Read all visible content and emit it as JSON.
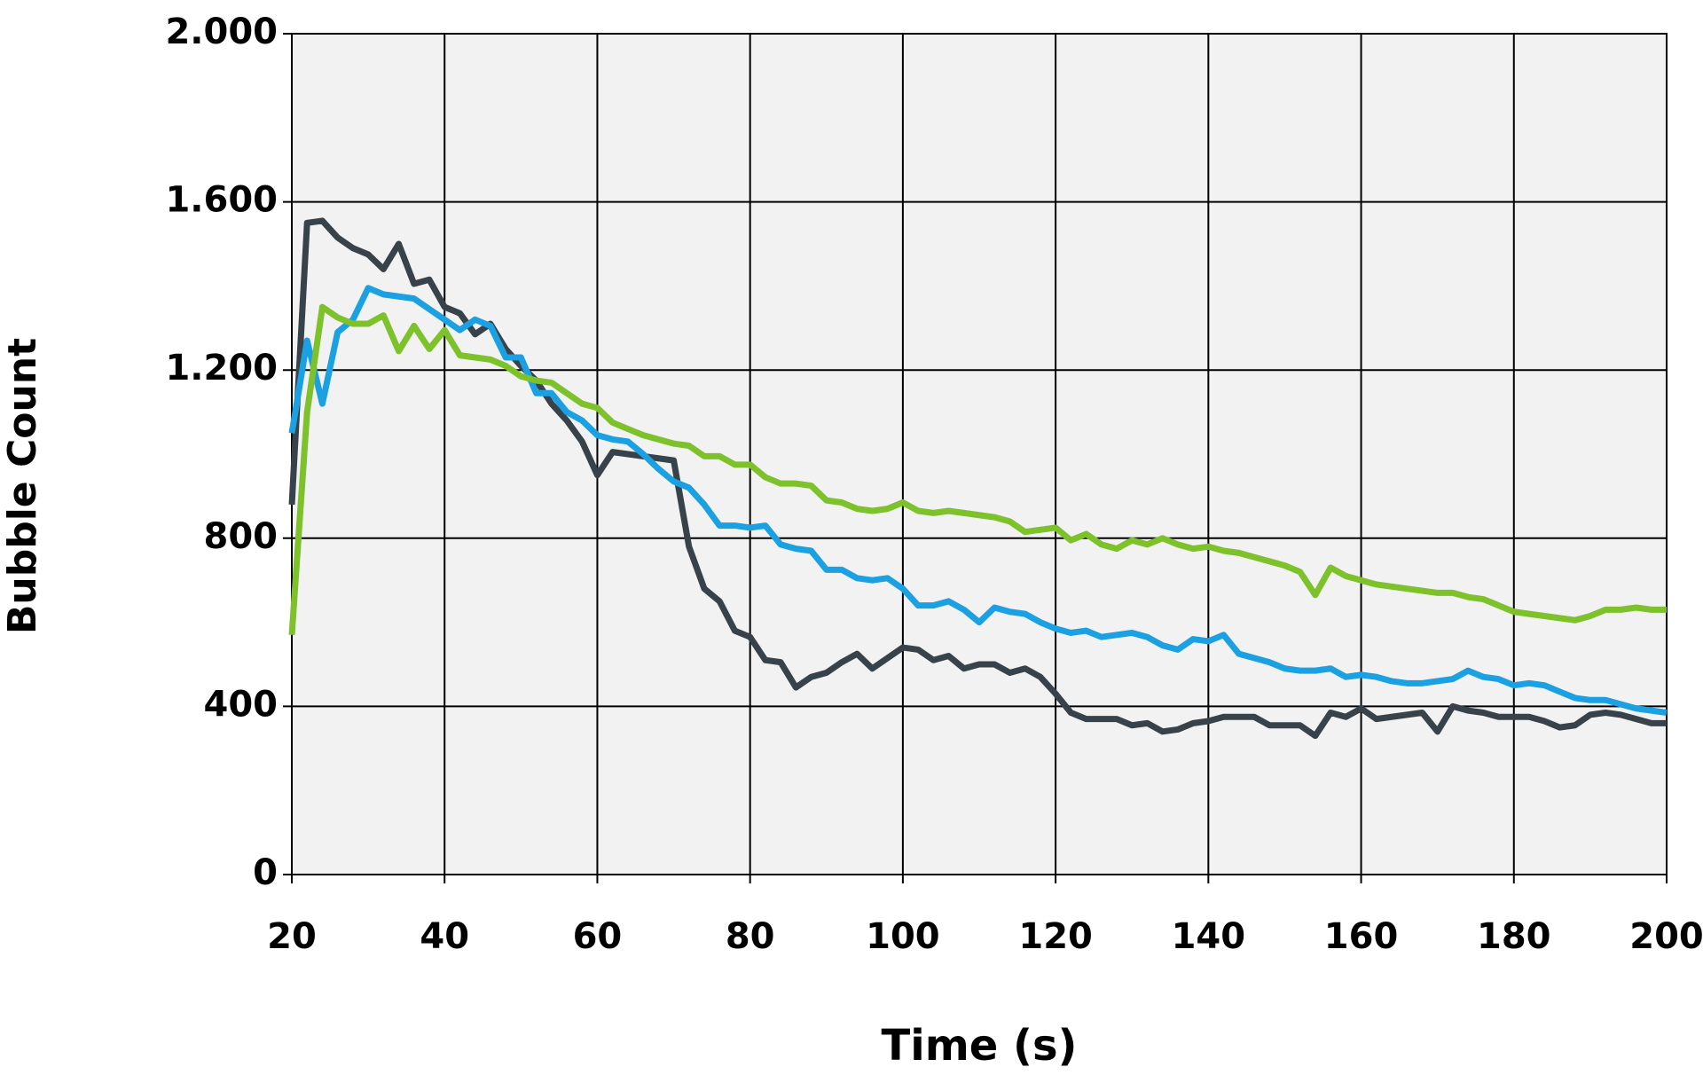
{
  "chart_data": {
    "type": "line",
    "x_label": "Time (s)",
    "y_label": "Bubble Count",
    "x": [
      20,
      22,
      24,
      26,
      28,
      30,
      32,
      34,
      36,
      38,
      40,
      42,
      44,
      46,
      48,
      50,
      52,
      54,
      56,
      58,
      60,
      62,
      64,
      66,
      68,
      70,
      72,
      74,
      76,
      78,
      80,
      82,
      84,
      86,
      88,
      90,
      92,
      94,
      96,
      98,
      100,
      102,
      104,
      106,
      108,
      110,
      112,
      114,
      116,
      118,
      120,
      122,
      124,
      126,
      128,
      130,
      132,
      134,
      136,
      138,
      140,
      142,
      144,
      146,
      148,
      150,
      152,
      154,
      156,
      158,
      160,
      162,
      164,
      166,
      168,
      170,
      172,
      174,
      176,
      178,
      180,
      182,
      184,
      186,
      188,
      190,
      192,
      194,
      196,
      198,
      200
    ],
    "series": [
      {
        "color": "#37424a",
        "values": [
          880,
          1550,
          1555,
          1515,
          1490,
          1475,
          1440,
          1500,
          1405,
          1415,
          1350,
          1335,
          1285,
          1310,
          1250,
          1210,
          1175,
          1120,
          1080,
          1030,
          950,
          1005,
          1000,
          995,
          990,
          985,
          780,
          680,
          650,
          580,
          565,
          510,
          505,
          445,
          470,
          480,
          505,
          525,
          490,
          515,
          540,
          535,
          510,
          520,
          490,
          500,
          500,
          480,
          490,
          470,
          430,
          385,
          370,
          370,
          370,
          355,
          360,
          340,
          345,
          360,
          365,
          375,
          375,
          375,
          355,
          355,
          355,
          330,
          385,
          375,
          395,
          370,
          375,
          380,
          385,
          340,
          400,
          390,
          385,
          375,
          375,
          375,
          365,
          350,
          355,
          380,
          385,
          380,
          370,
          360,
          360
        ]
      },
      {
        "color": "#1ba1e2",
        "values": [
          1050,
          1270,
          1120,
          1290,
          1320,
          1395,
          1380,
          1375,
          1370,
          1345,
          1320,
          1295,
          1320,
          1305,
          1230,
          1230,
          1145,
          1145,
          1100,
          1080,
          1045,
          1035,
          1030,
          1000,
          965,
          935,
          920,
          880,
          830,
          830,
          825,
          830,
          785,
          775,
          770,
          725,
          725,
          705,
          700,
          705,
          680,
          640,
          640,
          650,
          630,
          600,
          635,
          625,
          620,
          600,
          585,
          575,
          580,
          565,
          570,
          575,
          565,
          545,
          535,
          560,
          555,
          570,
          525,
          515,
          505,
          490,
          485,
          485,
          490,
          470,
          475,
          470,
          460,
          455,
          455,
          460,
          465,
          485,
          470,
          465,
          450,
          455,
          450,
          435,
          420,
          415,
          415,
          405,
          395,
          390,
          385
        ]
      },
      {
        "color": "#7dc12b",
        "values": [
          570,
          1100,
          1350,
          1325,
          1310,
          1310,
          1330,
          1245,
          1305,
          1250,
          1295,
          1235,
          1230,
          1225,
          1210,
          1185,
          1175,
          1170,
          1145,
          1120,
          1110,
          1075,
          1060,
          1045,
          1035,
          1025,
          1020,
          995,
          995,
          975,
          975,
          945,
          930,
          930,
          925,
          890,
          885,
          870,
          865,
          870,
          885,
          865,
          860,
          865,
          860,
          855,
          850,
          840,
          815,
          820,
          825,
          795,
          810,
          785,
          775,
          795,
          785,
          800,
          785,
          775,
          780,
          770,
          765,
          755,
          745,
          735,
          720,
          665,
          730,
          710,
          700,
          690,
          685,
          680,
          675,
          670,
          670,
          660,
          655,
          640,
          625,
          620,
          615,
          610,
          605,
          615,
          630,
          630,
          635,
          630,
          630
        ]
      }
    ],
    "xlim": [
      20,
      200
    ],
    "xticks": [
      20,
      40,
      60,
      80,
      100,
      120,
      140,
      160,
      180,
      200
    ],
    "ylim": [
      0,
      2000
    ],
    "yticks": [
      0,
      400,
      800,
      {
        "value": 1200,
        "label": "1.200"
      },
      {
        "value": 1600,
        "label": "1.600"
      },
      {
        "value": 2000,
        "label": "2.000"
      }
    ],
    "grid": true
  }
}
